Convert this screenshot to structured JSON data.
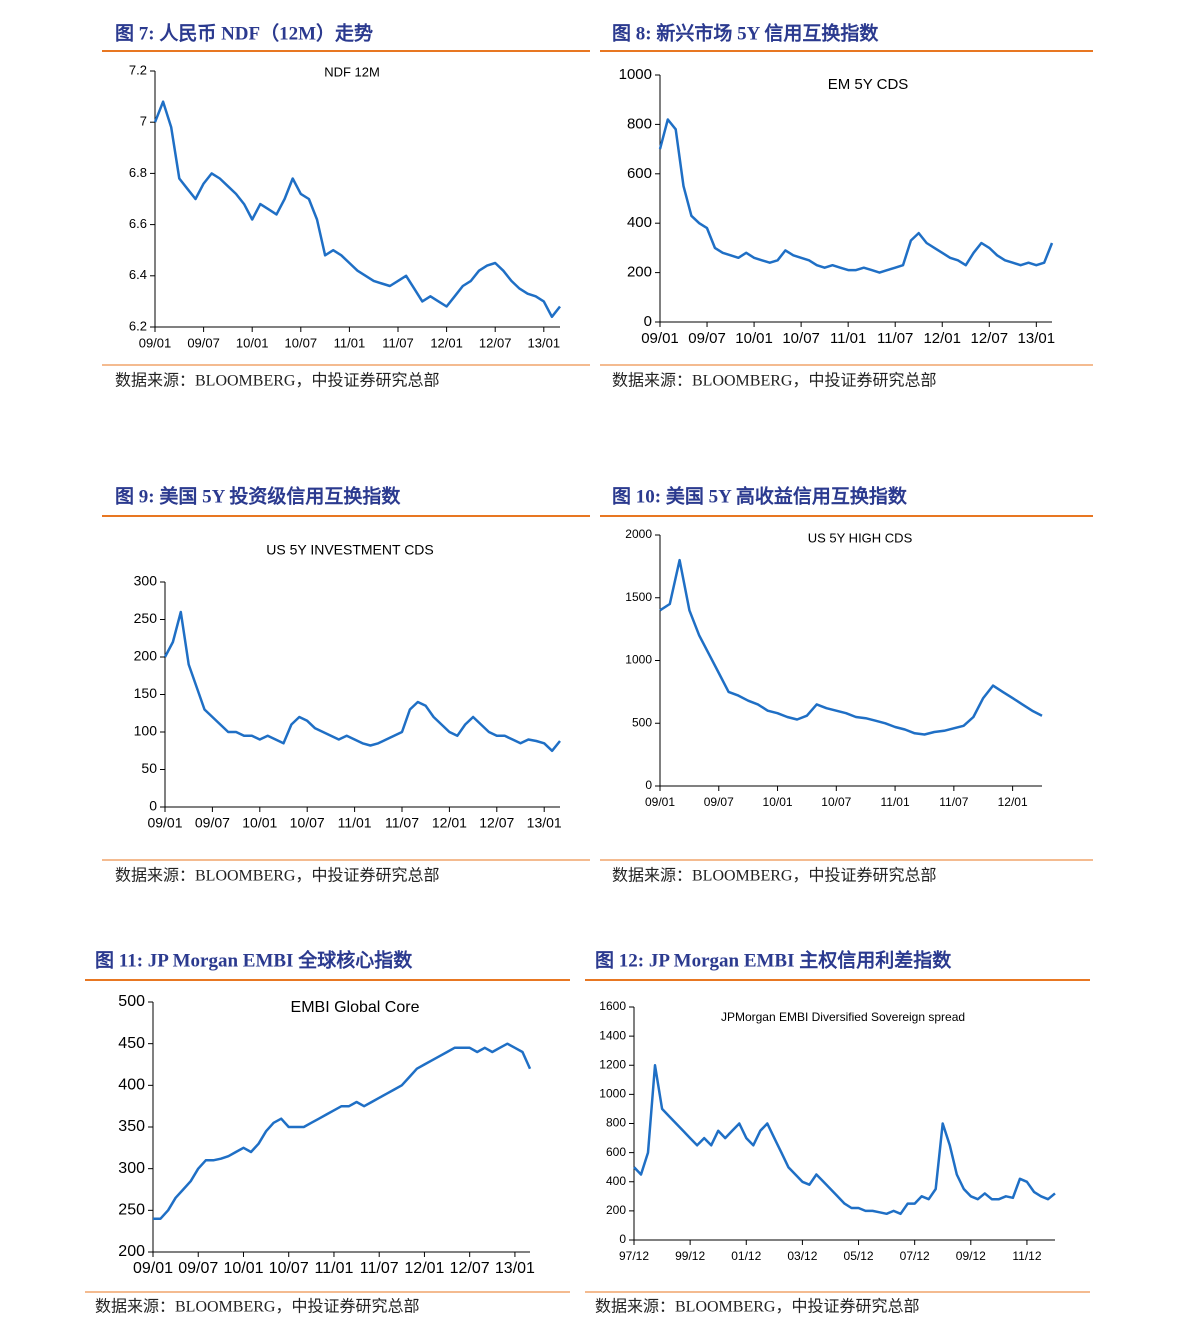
{
  "chart_data": [
    {
      "type": "line",
      "caption": "图 7:  人民币 NDF（12M）走势",
      "title": "NDF 12M",
      "source": "数据来源：BLOOMBERG，中投证券研究总部",
      "color": "#1f6fc5",
      "x": [
        "09/01",
        "09/02",
        "09/03",
        "09/04",
        "09/05",
        "09/06",
        "09/07",
        "09/08",
        "09/09",
        "09/10",
        "09/11",
        "09/12",
        "10/01",
        "10/02",
        "10/03",
        "10/04",
        "10/05",
        "10/06",
        "10/07",
        "10/08",
        "10/09",
        "10/10",
        "10/11",
        "10/12",
        "11/01",
        "11/02",
        "11/03",
        "11/04",
        "11/05",
        "11/06",
        "11/07",
        "11/08",
        "11/09",
        "11/10",
        "11/11",
        "11/12",
        "12/01",
        "12/02",
        "12/03",
        "12/04",
        "12/05",
        "12/06",
        "12/07",
        "12/08",
        "12/09",
        "12/10",
        "12/11",
        "12/12",
        "13/01",
        "13/02",
        "13/03"
      ],
      "values": [
        7.0,
        7.08,
        6.98,
        6.78,
        6.74,
        6.7,
        6.76,
        6.8,
        6.78,
        6.75,
        6.72,
        6.68,
        6.62,
        6.68,
        6.66,
        6.64,
        6.7,
        6.78,
        6.72,
        6.7,
        6.62,
        6.48,
        6.5,
        6.48,
        6.45,
        6.42,
        6.4,
        6.38,
        6.37,
        6.36,
        6.38,
        6.4,
        6.35,
        6.3,
        6.32,
        6.3,
        6.28,
        6.32,
        6.36,
        6.38,
        6.42,
        6.44,
        6.45,
        6.42,
        6.38,
        6.35,
        6.33,
        6.32,
        6.3,
        6.24,
        6.28
      ],
      "xticks": [
        "09/01",
        "09/07",
        "10/01",
        "10/07",
        "11/01",
        "11/07",
        "12/01",
        "12/07",
        "13/01"
      ],
      "ylim": [
        6.2,
        7.2
      ],
      "yticks": [
        6.2,
        6.4,
        6.6,
        6.8,
        7,
        7.2
      ]
    },
    {
      "type": "line",
      "caption": "图 8:   新兴市场 5Y 信用互换指数",
      "title": "EM 5Y CDS",
      "source": "数据来源：BLOOMBERG，中投证券研究总部",
      "color": "#1f6fc5",
      "x": [
        "09/01",
        "09/02",
        "09/03",
        "09/04",
        "09/05",
        "09/06",
        "09/07",
        "09/08",
        "09/09",
        "09/10",
        "09/11",
        "09/12",
        "10/01",
        "10/02",
        "10/03",
        "10/04",
        "10/05",
        "10/06",
        "10/07",
        "10/08",
        "10/09",
        "10/10",
        "10/11",
        "10/12",
        "11/01",
        "11/02",
        "11/03",
        "11/04",
        "11/05",
        "11/06",
        "11/07",
        "11/08",
        "11/09",
        "11/10",
        "11/11",
        "11/12",
        "12/01",
        "12/02",
        "12/03",
        "12/04",
        "12/05",
        "12/06",
        "12/07",
        "12/08",
        "12/09",
        "12/10",
        "12/11",
        "12/12",
        "13/01",
        "13/02",
        "13/03"
      ],
      "values": [
        700,
        820,
        780,
        550,
        430,
        400,
        380,
        300,
        280,
        270,
        260,
        280,
        260,
        250,
        240,
        250,
        290,
        270,
        260,
        250,
        230,
        220,
        230,
        220,
        210,
        210,
        220,
        210,
        200,
        210,
        220,
        230,
        330,
        360,
        320,
        300,
        280,
        260,
        250,
        230,
        280,
        320,
        300,
        270,
        250,
        240,
        230,
        240,
        230,
        240,
        320
      ],
      "xticks": [
        "09/01",
        "09/07",
        "10/01",
        "10/07",
        "11/01",
        "11/07",
        "12/01",
        "12/07",
        "13/01"
      ],
      "ylim": [
        0,
        1000
      ],
      "yticks": [
        0,
        200,
        400,
        600,
        800,
        1000
      ]
    },
    {
      "type": "line",
      "caption": "图 9:  美国 5Y 投资级信用互换指数",
      "title": "US 5Y INVESTMENT  CDS",
      "source": "数据来源：BLOOMBERG，中投证券研究总部",
      "color": "#1f6fc5",
      "x": [
        "09/01",
        "09/02",
        "09/03",
        "09/04",
        "09/05",
        "09/06",
        "09/07",
        "09/08",
        "09/09",
        "09/10",
        "09/11",
        "09/12",
        "10/01",
        "10/02",
        "10/03",
        "10/04",
        "10/05",
        "10/06",
        "10/07",
        "10/08",
        "10/09",
        "10/10",
        "10/11",
        "10/12",
        "11/01",
        "11/02",
        "11/03",
        "11/04",
        "11/05",
        "11/06",
        "11/07",
        "11/08",
        "11/09",
        "11/10",
        "11/11",
        "11/12",
        "12/01",
        "12/02",
        "12/03",
        "12/04",
        "12/05",
        "12/06",
        "12/07",
        "12/08",
        "12/09",
        "12/10",
        "12/11",
        "12/12",
        "13/01",
        "13/02",
        "13/03"
      ],
      "values": [
        200,
        220,
        260,
        190,
        160,
        130,
        120,
        110,
        100,
        100,
        95,
        95,
        90,
        95,
        90,
        85,
        110,
        120,
        115,
        105,
        100,
        95,
        90,
        95,
        90,
        85,
        82,
        85,
        90,
        95,
        100,
        130,
        140,
        135,
        120,
        110,
        100,
        95,
        110,
        120,
        110,
        100,
        95,
        95,
        90,
        85,
        90,
        88,
        85,
        75,
        88
      ],
      "xticks": [
        "09/01",
        "09/07",
        "10/01",
        "10/07",
        "11/01",
        "11/07",
        "12/01",
        "12/07",
        "13/01"
      ],
      "ylim": [
        0,
        300
      ],
      "yticks": [
        0,
        50,
        100,
        150,
        200,
        250,
        300
      ]
    },
    {
      "type": "line",
      "caption": "图 10:  美国 5Y 高收益信用互换指数",
      "title": "US 5Y HIGH  CDS",
      "source": "数据来源：BLOOMBERG，中投证券研究总部",
      "color": "#1f6fc5",
      "x": [
        "09/01",
        "09/02",
        "09/03",
        "09/04",
        "09/05",
        "09/06",
        "09/07",
        "09/08",
        "09/09",
        "09/10",
        "09/11",
        "09/12",
        "10/01",
        "10/02",
        "10/03",
        "10/04",
        "10/05",
        "10/06",
        "10/07",
        "10/08",
        "10/09",
        "10/10",
        "10/11",
        "10/12",
        "11/01",
        "11/02",
        "11/03",
        "11/04",
        "11/05",
        "11/06",
        "11/07",
        "11/08",
        "11/09",
        "11/10",
        "11/11",
        "11/12",
        "12/01",
        "12/02",
        "12/03",
        "12/04"
      ],
      "values": [
        1400,
        1450,
        1800,
        1400,
        1200,
        1050,
        900,
        750,
        720,
        680,
        650,
        600,
        580,
        550,
        530,
        560,
        650,
        620,
        600,
        580,
        550,
        540,
        520,
        500,
        470,
        450,
        420,
        410,
        430,
        440,
        460,
        480,
        550,
        700,
        800,
        750,
        700,
        650,
        600,
        560
      ],
      "xticks": [
        "09/01",
        "09/07",
        "10/01",
        "10/07",
        "11/01",
        "11/07",
        "12/01"
      ],
      "ylim": [
        0,
        2000
      ],
      "yticks": [
        0,
        500,
        1000,
        1500,
        2000
      ]
    },
    {
      "type": "line",
      "caption": "图 11:  JP Morgan EMBI  全球核心指数",
      "title": "EMBI Global Core",
      "source": "数据来源：BLOOMBERG，中投证券研究总部",
      "color": "#1f6fc5",
      "x": [
        "09/01",
        "09/02",
        "09/03",
        "09/04",
        "09/05",
        "09/06",
        "09/07",
        "09/08",
        "09/09",
        "09/10",
        "09/11",
        "09/12",
        "10/01",
        "10/02",
        "10/03",
        "10/04",
        "10/05",
        "10/06",
        "10/07",
        "10/08",
        "10/09",
        "10/10",
        "10/11",
        "10/12",
        "11/01",
        "11/02",
        "11/03",
        "11/04",
        "11/05",
        "11/06",
        "11/07",
        "11/08",
        "11/09",
        "11/10",
        "11/11",
        "11/12",
        "12/01",
        "12/02",
        "12/03",
        "12/04",
        "12/05",
        "12/06",
        "12/07",
        "12/08",
        "12/09",
        "12/10",
        "12/11",
        "12/12",
        "13/01",
        "13/02",
        "13/03"
      ],
      "values": [
        240,
        240,
        250,
        265,
        275,
        285,
        300,
        310,
        310,
        312,
        315,
        320,
        325,
        320,
        330,
        345,
        355,
        360,
        350,
        350,
        350,
        355,
        360,
        365,
        370,
        375,
        375,
        380,
        375,
        380,
        385,
        390,
        395,
        400,
        410,
        420,
        425,
        430,
        435,
        440,
        445,
        445,
        445,
        440,
        445,
        440,
        445,
        450,
        445,
        440,
        420
      ],
      "xticks": [
        "09/01",
        "09/07",
        "10/01",
        "10/07",
        "11/01",
        "11/07",
        "12/01",
        "12/07",
        "13/01"
      ],
      "ylim": [
        200,
        500
      ],
      "yticks": [
        200,
        250,
        300,
        350,
        400,
        450,
        500
      ]
    },
    {
      "type": "line",
      "caption": "图 12:  JP Morgan EMBI  主权信用利差指数",
      "title": "JPMorgan EMBI Diversified Sovereign spread",
      "source": "数据来源：BLOOMBERG，中投证券研究总部",
      "color": "#1f6fc5",
      "x": [
        "97/12",
        "98/03",
        "98/06",
        "98/09",
        "98/12",
        "99/03",
        "99/06",
        "99/09",
        "99/12",
        "00/03",
        "00/06",
        "00/09",
        "00/12",
        "01/03",
        "01/06",
        "01/09",
        "01/12",
        "02/03",
        "02/06",
        "02/09",
        "02/12",
        "03/03",
        "03/06",
        "03/09",
        "03/12",
        "04/03",
        "04/06",
        "04/09",
        "04/12",
        "05/03",
        "05/06",
        "05/09",
        "05/12",
        "06/03",
        "06/06",
        "06/09",
        "06/12",
        "07/03",
        "07/06",
        "07/09",
        "07/12",
        "08/03",
        "08/06",
        "08/09",
        "08/12",
        "09/03",
        "09/06",
        "09/09",
        "09/12",
        "10/03",
        "10/06",
        "10/09",
        "10/12",
        "11/03",
        "11/06",
        "11/09",
        "11/12",
        "12/03",
        "12/06",
        "12/09",
        "12/12"
      ],
      "values": [
        500,
        450,
        600,
        1200,
        900,
        850,
        800,
        750,
        700,
        650,
        700,
        650,
        750,
        700,
        750,
        800,
        700,
        650,
        750,
        800,
        700,
        600,
        500,
        450,
        400,
        380,
        450,
        400,
        350,
        300,
        250,
        220,
        220,
        200,
        200,
        190,
        180,
        200,
        180,
        250,
        250,
        300,
        280,
        350,
        800,
        650,
        450,
        350,
        300,
        280,
        320,
        280,
        280,
        300,
        290,
        420,
        400,
        330,
        300,
        280,
        320
      ],
      "xticks": [
        "97/12",
        "99/12",
        "01/12",
        "03/12",
        "05/12",
        "07/12",
        "09/12",
        "11/12"
      ],
      "ylim": [
        0,
        1600
      ],
      "yticks": [
        0,
        200,
        400,
        600,
        800,
        1000,
        1200,
        1400,
        1600
      ]
    }
  ]
}
